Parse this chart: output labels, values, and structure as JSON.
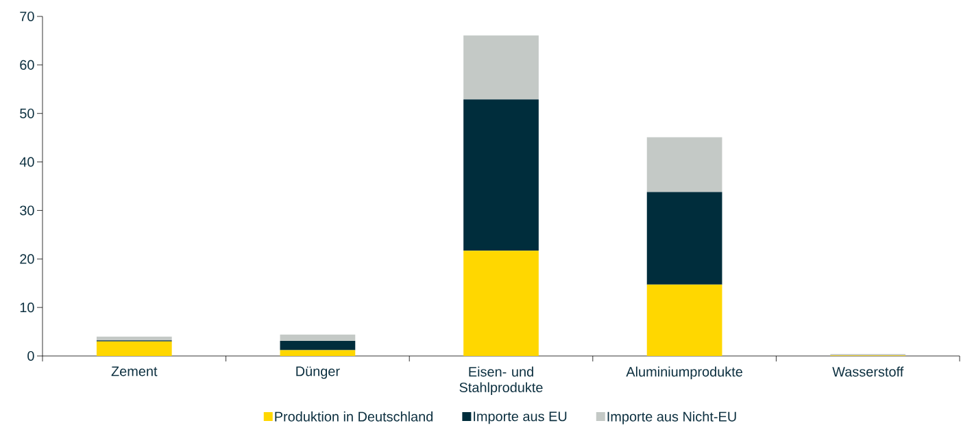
{
  "chart_data": {
    "type": "bar",
    "stacked": true,
    "categories": [
      "Zement",
      "Dünger",
      "Eisen- und Stahlprodukte",
      "Aluminiumprodukte",
      "Wasserstoff"
    ],
    "series": [
      {
        "name": "Produktion in Deutschland",
        "color": "#ffd700",
        "values": [
          3.0,
          1.2,
          21.7,
          14.7,
          0.1
        ]
      },
      {
        "name": "Importe aus EU",
        "color": "#002d3c",
        "values": [
          0.2,
          1.9,
          31.2,
          19.1,
          0
        ]
      },
      {
        "name": "Importe aus Nicht-EU",
        "color": "#c4c9c6",
        "values": [
          0.8,
          1.3,
          13.2,
          11.3,
          0.3
        ]
      }
    ],
    "ylim": [
      0,
      70
    ],
    "yticks": [
      0,
      10,
      20,
      30,
      40,
      50,
      60,
      70
    ],
    "grid": false,
    "legend": "bottom"
  }
}
